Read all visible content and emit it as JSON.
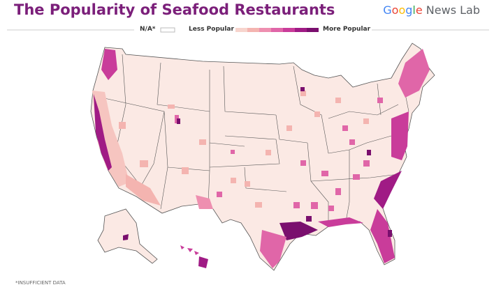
{
  "header": {
    "title": "The Popularity of Seafood Restaurants",
    "brand_google": "Google",
    "brand_rest": "News Lab"
  },
  "legend": {
    "na": "N/A*",
    "low": "Less Popular",
    "high": "More Popular"
  },
  "footnote": "*INSUFFICIENT DATA"
}
